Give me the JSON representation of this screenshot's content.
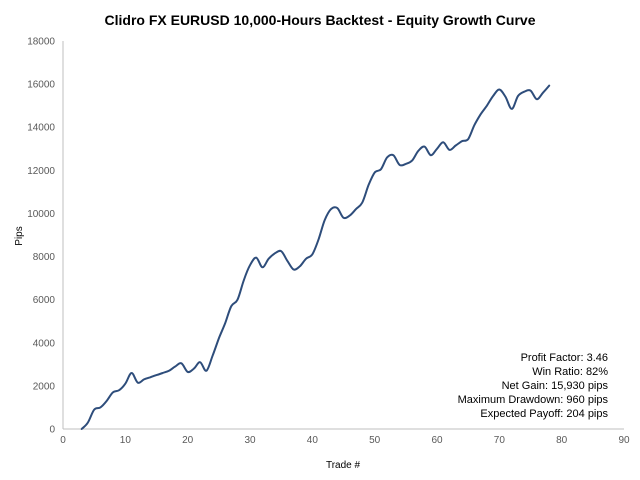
{
  "chart_data": {
    "type": "line",
    "title": "Clidro FX EURUSD 10,000-Hours Backtest - Equity Growth Curve",
    "xlabel": "Trade #",
    "ylabel": "Pips",
    "xlim": [
      0,
      90
    ],
    "ylim": [
      0,
      18000
    ],
    "xticks": [
      "0",
      "10",
      "20",
      "30",
      "40",
      "50",
      "60",
      "70",
      "80",
      "90"
    ],
    "yticks": [
      "0",
      "2000",
      "4000",
      "6000",
      "8000",
      "10000",
      "12000",
      "14000",
      "16000",
      "18000"
    ],
    "grid": false,
    "line_color": "#2e4d7b",
    "series": [
      {
        "x": [
          3,
          4,
          5,
          6,
          7,
          8,
          9,
          10,
          11,
          12,
          13,
          14,
          15,
          16,
          17,
          18,
          19,
          20,
          21,
          22,
          23,
          24,
          25,
          26,
          27,
          28,
          29,
          30,
          31,
          32,
          33,
          34,
          35,
          36,
          37,
          38,
          39,
          40,
          41,
          42,
          43,
          44,
          45,
          46,
          47,
          48,
          49,
          50,
          51,
          52,
          53,
          54,
          55,
          56,
          57,
          58,
          59,
          60,
          61,
          62,
          63,
          64,
          65,
          66,
          67,
          68,
          69,
          70,
          71,
          72,
          73,
          74,
          75,
          76,
          77,
          78
        ],
        "values": [
          0,
          300,
          900,
          1000,
          1300,
          1700,
          1800,
          2100,
          2600,
          2150,
          2300,
          2400,
          2500,
          2600,
          2700,
          2900,
          3050,
          2650,
          2800,
          3100,
          2700,
          3400,
          4200,
          4900,
          5700,
          6000,
          6900,
          7600,
          7950,
          7500,
          7900,
          8150,
          8250,
          7800,
          7400,
          7550,
          7900,
          8100,
          8800,
          9700,
          10200,
          10250,
          9800,
          9900,
          10200,
          10500,
          11300,
          11900,
          12050,
          12600,
          12700,
          12250,
          12300,
          12450,
          12900,
          13100,
          12700,
          13000,
          13300,
          12950,
          13150,
          13350,
          13450,
          14100,
          14600,
          15000,
          15450,
          15750,
          15400,
          14850,
          15450,
          15650,
          15700,
          15300,
          15600,
          15930
        ]
      }
    ]
  },
  "stats": {
    "profit_factor": "Profit Factor: 3.46",
    "win_ratio": "Win Ratio: 82%",
    "net_gain": "Net Gain: 15,930 pips",
    "max_drawdown": "Maximum  Drawdown: 960 pips",
    "expected_payoff": "Expected Payoff: 204 pips"
  }
}
